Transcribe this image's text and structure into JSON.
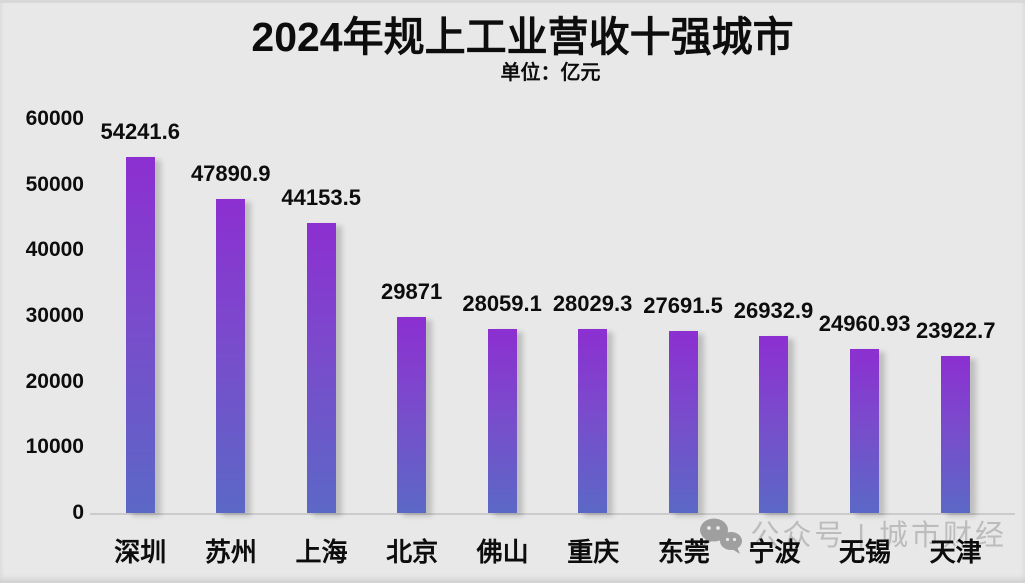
{
  "page": {
    "background_color": "#e8e8e8"
  },
  "header": {
    "title": "2024年规上工业营收十强城市",
    "subtitle": "单位：亿元"
  },
  "chart_data": {
    "type": "bar",
    "title": "2024年规上工业营收十强城市",
    "subtitle": "单位：亿元",
    "xlabel": "",
    "ylabel": "",
    "categories": [
      "深圳",
      "苏州",
      "上海",
      "北京",
      "佛山",
      "重庆",
      "东莞",
      "宁波",
      "无锡",
      "天津"
    ],
    "values": [
      54241.6,
      47890.9,
      44153.5,
      29871,
      28059.1,
      28029.3,
      27691.5,
      26932.9,
      24960.93,
      23922.7
    ],
    "value_labels": [
      "54241.6",
      "47890.9",
      "44153.5",
      "29871",
      "28059.1",
      "28029.3",
      "27691.5",
      "26932.9",
      "24960.93",
      "23922.7"
    ],
    "ylim": [
      0,
      60000
    ],
    "yticks": [
      0,
      10000,
      20000,
      30000,
      40000,
      50000,
      60000
    ],
    "grid": false,
    "legend": null,
    "bar_gradient": {
      "top": "#8c2fd1",
      "mid": "#7a4bcc",
      "bottom": "#5b68c6"
    },
    "label_color": "#0d0d0d"
  },
  "watermark": {
    "icon": "wechat-icon",
    "text": "公众号 | 城市财经",
    "color": "#bcbcbc",
    "icon_color": "#9f9f9f"
  }
}
